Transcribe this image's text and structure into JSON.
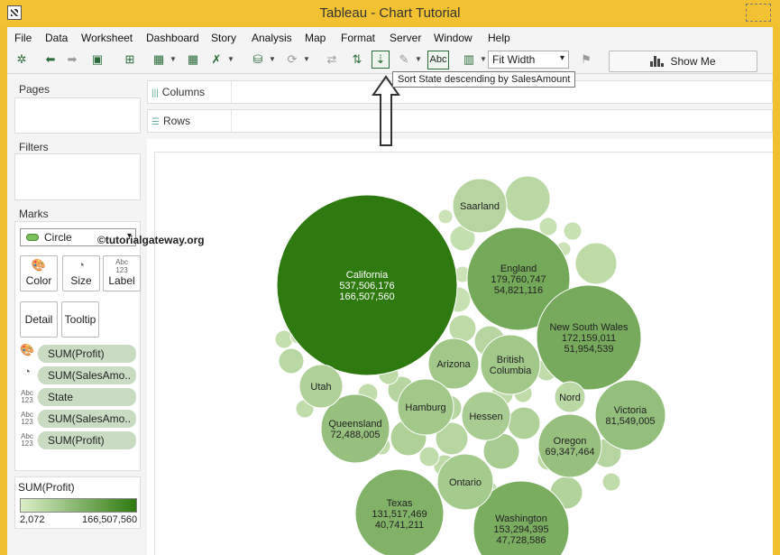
{
  "window": {
    "title": "Tableau - Chart Tutorial"
  },
  "menu": [
    "File",
    "Data",
    "Worksheet",
    "Dashboard",
    "Story",
    "Analysis",
    "Map",
    "Format",
    "Server",
    "Window",
    "Help"
  ],
  "toolbar": {
    "fit_value": "Fit Width",
    "abc_label": "Abc",
    "show_me_label": "Show Me",
    "tooltip": "Sort State descending by SalesAmount"
  },
  "shelves": {
    "columns": "Columns",
    "rows": "Rows"
  },
  "panels": {
    "pages": "Pages",
    "filters": "Filters",
    "marks": "Marks"
  },
  "marks": {
    "type": "Circle",
    "cards": [
      {
        "label": "Color",
        "icon": "color-icon"
      },
      {
        "label": "Size",
        "icon": "size-icon"
      },
      {
        "label": "Label",
        "icon": "label-icon"
      },
      {
        "label": "Detail",
        "icon": "detail-icon"
      },
      {
        "label": "Tooltip",
        "icon": "tooltip-icon"
      }
    ],
    "pills": [
      {
        "icon": "color-icon",
        "label": "SUM(Profit)"
      },
      {
        "icon": "size-icon",
        "label": "SUM(SalesAmo.."
      },
      {
        "icon": "abc-icon",
        "label": "State"
      },
      {
        "icon": "abc-icon",
        "label": "SUM(SalesAmo.."
      },
      {
        "icon": "abc-icon",
        "label": "SUM(Profit)"
      }
    ]
  },
  "legend": {
    "title": "SUM(Profit)",
    "min": "2,072",
    "max": "166,507,560"
  },
  "watermark": "©tutorialgateway.org",
  "chart_data": {
    "type": "packed-bubble",
    "labeled_bubbles": [
      {
        "state": "California",
        "sales": "537,506,176",
        "profit": "166,507,560"
      },
      {
        "state": "England",
        "sales": "179,760,747",
        "profit": "54,821,116"
      },
      {
        "state": "New South Wales",
        "sales": "172,159,011",
        "profit": "51,954,539"
      },
      {
        "state": "Washington",
        "sales": "153,294,395",
        "profit": "47,728,586"
      },
      {
        "state": "Texas",
        "sales": "131,517,469",
        "profit": "40,741,211"
      },
      {
        "state": "Victoria",
        "sales": "81,549,005",
        "profit": ""
      },
      {
        "state": "Queensland",
        "sales": "72,488,005",
        "profit": ""
      },
      {
        "state": "Oregon",
        "sales": "69,347,464",
        "profit": ""
      },
      {
        "state": "Saarland",
        "sales": "",
        "profit": ""
      },
      {
        "state": "Arizona",
        "sales": "",
        "profit": ""
      },
      {
        "state": "British Columbia",
        "sales": "",
        "profit": ""
      },
      {
        "state": "Utah",
        "sales": "",
        "profit": ""
      },
      {
        "state": "Hamburg",
        "sales": "",
        "profit": ""
      },
      {
        "state": "Hessen",
        "sales": "",
        "profit": ""
      },
      {
        "state": "Nord",
        "sales": "",
        "profit": ""
      },
      {
        "state": "Ontario",
        "sales": "",
        "profit": ""
      }
    ],
    "color_scale": {
      "low": "#dcefc8",
      "high": "#2f7a10",
      "min": 2072,
      "max": 166507560
    }
  }
}
